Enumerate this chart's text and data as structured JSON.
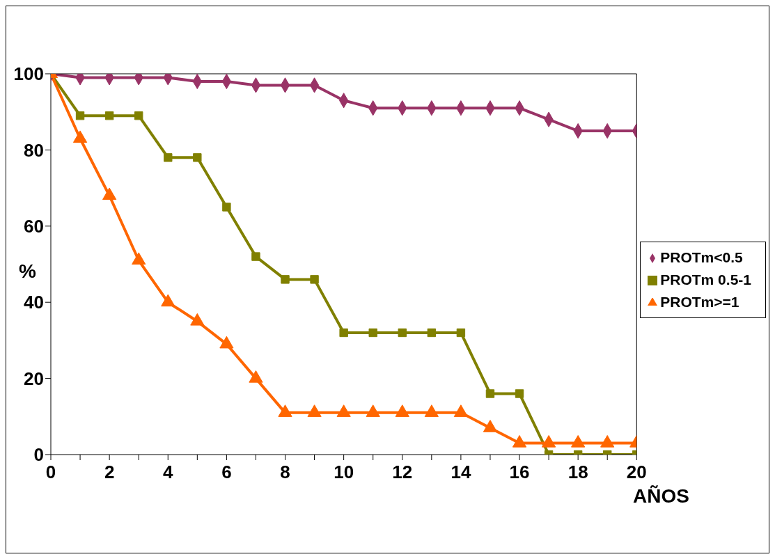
{
  "chart_data": {
    "type": "line",
    "x": [
      0,
      1,
      2,
      3,
      4,
      5,
      6,
      7,
      8,
      9,
      10,
      11,
      12,
      13,
      14,
      15,
      16,
      17,
      18,
      19,
      20
    ],
    "series": [
      {
        "name": "PROTm<0.5",
        "color": "#993366",
        "marker": "diamond",
        "values": [
          100,
          99,
          99,
          99,
          99,
          98,
          98,
          97,
          97,
          97,
          93,
          91,
          91,
          91,
          91,
          91,
          91,
          88,
          85,
          85,
          85
        ]
      },
      {
        "name": "PROTm 0.5-1",
        "color": "#808000",
        "marker": "square",
        "values": [
          100,
          89,
          89,
          89,
          78,
          78,
          65,
          52,
          46,
          46,
          32,
          32,
          32,
          32,
          32,
          16,
          16,
          0,
          0,
          0,
          0
        ]
      },
      {
        "name": "PROTm>=1",
        "color": "#ff6600",
        "marker": "triangle",
        "values": [
          100,
          83,
          68,
          51,
          40,
          35,
          29,
          20,
          11,
          11,
          11,
          11,
          11,
          11,
          11,
          7,
          3,
          3,
          3,
          3,
          3
        ]
      }
    ],
    "xlabel": "AÑOS",
    "ylabel": "%",
    "xlim": [
      0,
      20
    ],
    "xticks": [
      0,
      {
        "value": 1,
        "label": null
      },
      2,
      {
        "value": 3,
        "label": null
      },
      4,
      {
        "value": 5,
        "label": null
      },
      6,
      {
        "value": 7,
        "label": null
      },
      8,
      {
        "value": 9,
        "label": null
      },
      10,
      {
        "value": 11,
        "label": null
      },
      12,
      {
        "value": 13,
        "label": null
      },
      14,
      {
        "value": 15,
        "label": null
      },
      16,
      {
        "value": 17,
        "label": null
      },
      18,
      {
        "value": 19,
        "label": null
      },
      20
    ],
    "ylim": [
      0,
      100
    ],
    "yticks": [
      0,
      20,
      40,
      60,
      80,
      100
    ],
    "grid": false,
    "legend": "right",
    "line_style": "solid"
  }
}
